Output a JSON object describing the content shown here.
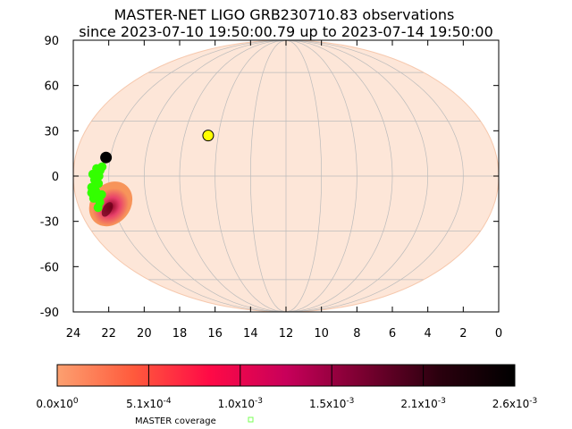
{
  "chart_data": {
    "type": "scatter",
    "projection": "mollweide",
    "title": "MASTER-NET LIGO GRB230710.83 observations",
    "subtitle": "since 2023-07-10 19:50:00.79 up to 2023-07-14 19:50:00",
    "x_ticks": [
      "24",
      "22",
      "20",
      "18",
      "16",
      "14",
      "12",
      "10",
      "8",
      "6",
      "4",
      "2",
      "0"
    ],
    "y_ticks": [
      "90",
      "60",
      "30",
      "0",
      "-30",
      "-60",
      "-90"
    ],
    "xlim": [
      24,
      0
    ],
    "ylim": [
      -90,
      90
    ],
    "grid": true,
    "colors": {
      "sky_fill": "#fde6d8",
      "grid": "#bbbbbb",
      "probability_low": "#f7945a",
      "coverage": "#33ff00",
      "sun": "#ffff00",
      "moon": "#000000"
    },
    "probability_region": {
      "center_ra_hours": 1.9,
      "center_dec_deg": -15,
      "core_ra_hours": 1.6,
      "core_dec_deg": -18
    },
    "coverage_points_ra_dec": [
      [
        1.3,
        4
      ],
      [
        1.1,
        1
      ],
      [
        1.5,
        3
      ],
      [
        1.2,
        -2
      ],
      [
        1.0,
        -6
      ],
      [
        1.2,
        -8
      ],
      [
        1.0,
        -12
      ],
      [
        1.3,
        -14
      ],
      [
        1.5,
        -10
      ],
      [
        1.1,
        -17
      ],
      [
        1.6,
        5
      ],
      [
        1.4,
        -4
      ],
      [
        0.95,
        -9
      ],
      [
        1.25,
        -11
      ],
      [
        1.45,
        0
      ]
    ],
    "sun": {
      "ra_hours": 7.4,
      "dec_deg": 22
    },
    "moon": {
      "ra_hours": 1.75,
      "dec_deg": 10
    },
    "colorbar": {
      "labels": [
        {
          "mantissa": "0.0x10",
          "exp": "0"
        },
        {
          "mantissa": "5.1x10",
          "exp": "-4"
        },
        {
          "mantissa": "1.0x10",
          "exp": "-3"
        },
        {
          "mantissa": "1.5x10",
          "exp": "-3"
        },
        {
          "mantissa": "2.1x10",
          "exp": "-3"
        },
        {
          "mantissa": "2.6x10",
          "exp": "-3"
        }
      ],
      "stops": [
        "#fca070",
        "#ff5a3c",
        "#ff0a46",
        "#c8005a",
        "#7a0030",
        "#2b000e",
        "#000000"
      ]
    },
    "legend": {
      "label": "MASTER coverage"
    }
  }
}
